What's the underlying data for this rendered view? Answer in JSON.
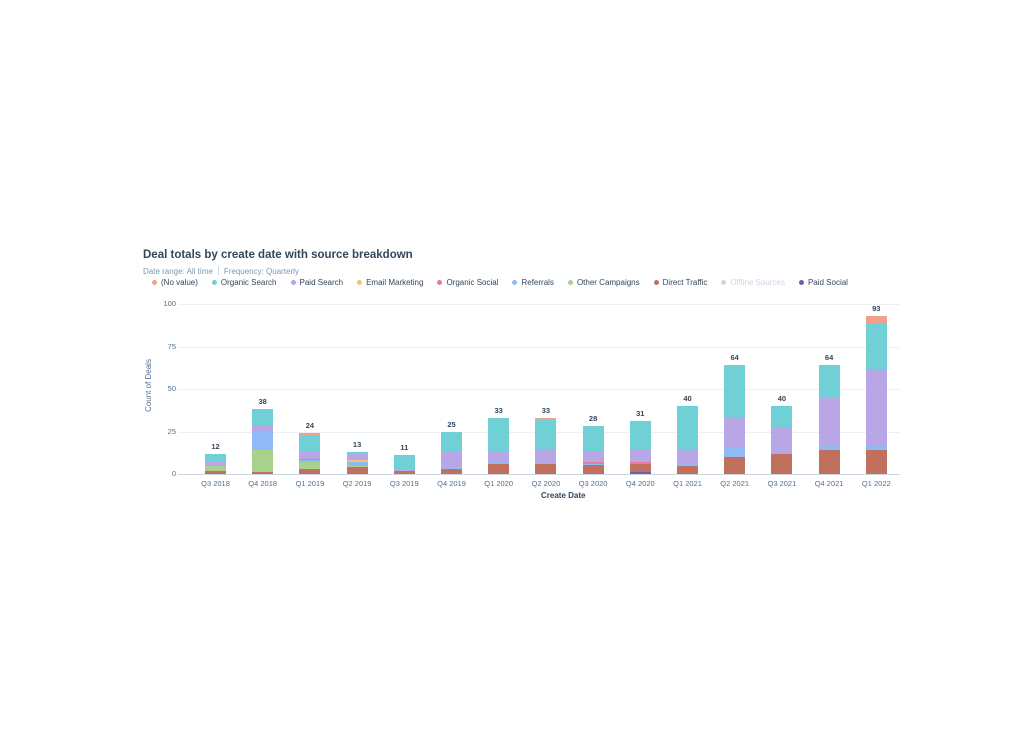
{
  "header": {
    "title": "Deal totals by create date with source breakdown",
    "date_range": "Date range: All time",
    "frequency": "Frequency: Quarterly"
  },
  "legend": [
    {
      "label": "(No value)",
      "color": "#f2a08b",
      "muted": false
    },
    {
      "label": "Organic Search",
      "color": "#6fd0d6",
      "muted": false
    },
    {
      "label": "Paid Search",
      "color": "#b9a6e6",
      "muted": false
    },
    {
      "label": "Email Marketing",
      "color": "#f5c27a",
      "muted": false
    },
    {
      "label": "Organic Social",
      "color": "#e27d9c",
      "muted": false
    },
    {
      "label": "Referrals",
      "color": "#8fbaf5",
      "muted": false
    },
    {
      "label": "Other Campaigns",
      "color": "#a9d18e",
      "muted": false
    },
    {
      "label": "Direct Traffic",
      "color": "#c0705c",
      "muted": false
    },
    {
      "label": "Offline Sources",
      "color": "#cbd6e2",
      "muted": true
    },
    {
      "label": "Paid Social",
      "color": "#6b5fa8",
      "muted": false
    }
  ],
  "chart_data": {
    "type": "bar",
    "stacked": true,
    "title": "Deal totals by create date with source breakdown",
    "subtitle": "Date range: All time | Frequency: Quarterly",
    "xlabel": "Create Date",
    "ylabel": "Count of Deals",
    "ylim": [
      0,
      100
    ],
    "yticks": [
      0,
      25,
      50,
      75,
      100
    ],
    "grid": true,
    "legend_position": "top",
    "categories": [
      "Q3 2018",
      "Q4 2018",
      "Q1 2019",
      "Q2 2019",
      "Q3 2019",
      "Q4 2019",
      "Q1 2020",
      "Q2 2020",
      "Q3 2020",
      "Q4 2020",
      "Q1 2021",
      "Q2 2021",
      "Q3 2021",
      "Q4 2021",
      "Q1 2022"
    ],
    "totals": [
      12,
      38,
      24,
      13,
      11,
      25,
      33,
      33,
      28,
      31,
      40,
      64,
      40,
      64,
      93
    ],
    "series": [
      {
        "name": "Paid Social",
        "color": "#6b5fa8",
        "values": [
          0,
          0,
          0,
          0,
          0,
          0,
          0,
          0,
          0,
          1,
          0,
          0,
          0,
          0,
          0
        ]
      },
      {
        "name": "Direct Traffic",
        "color": "#c0705c",
        "values": [
          2,
          1,
          3,
          4,
          2,
          3,
          6,
          6,
          5,
          5,
          5,
          10,
          12,
          14,
          14
        ]
      },
      {
        "name": "Offline Sources",
        "color": "#cbd6e2",
        "values": [
          0,
          0,
          0,
          0,
          0,
          0,
          0,
          0,
          0,
          0,
          0,
          0,
          0,
          0,
          0
        ]
      },
      {
        "name": "Other Campaigns",
        "color": "#a9d18e",
        "values": [
          3,
          13,
          4,
          1,
          0,
          0,
          0,
          0,
          0,
          0,
          0,
          0,
          0,
          0,
          0
        ]
      },
      {
        "name": "Referrals",
        "color": "#8fbaf5",
        "values": [
          0,
          11,
          1,
          2,
          0,
          1,
          1,
          0,
          1,
          0,
          1,
          5,
          0,
          3,
          3
        ]
      },
      {
        "name": "Organic Social",
        "color": "#e27d9c",
        "values": [
          0,
          0,
          1,
          0,
          0,
          0,
          0,
          0,
          1,
          1,
          0,
          0,
          0,
          0,
          0
        ]
      },
      {
        "name": "Email Marketing",
        "color": "#f5c27a",
        "values": [
          0,
          0,
          0,
          1,
          0,
          0,
          0,
          0,
          0,
          0,
          0,
          0,
          0,
          0,
          0
        ]
      },
      {
        "name": "Paid Search",
        "color": "#b9a6e6",
        "values": [
          2,
          4,
          4,
          4,
          1,
          9,
          6,
          9,
          6,
          8,
          9,
          18,
          15,
          28,
          45
        ]
      },
      {
        "name": "Organic Search",
        "color": "#6fd0d6",
        "values": [
          5,
          9,
          10,
          1,
          8,
          12,
          20,
          17,
          15,
          16,
          25,
          31,
          13,
          19,
          27
        ]
      },
      {
        "name": "(No value)",
        "color": "#f2a08b",
        "values": [
          0,
          0,
          1,
          0,
          0,
          0,
          0,
          1,
          0,
          0,
          0,
          0,
          0,
          0,
          4
        ]
      }
    ]
  }
}
